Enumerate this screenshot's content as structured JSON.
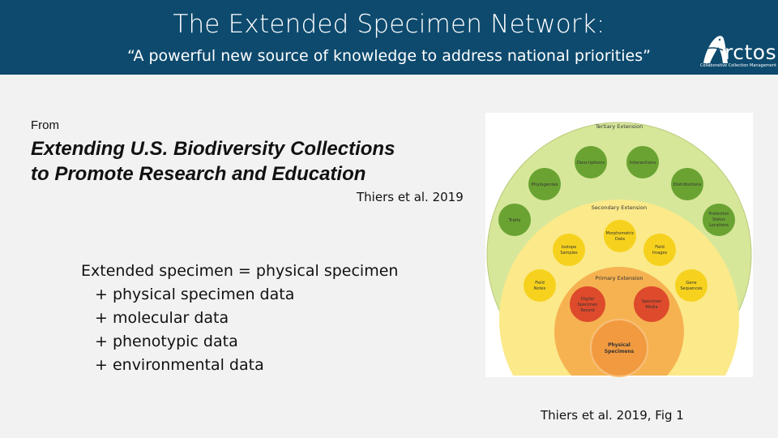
{
  "header": {
    "title": "The Extended Specimen Network:",
    "subtitle": "“A powerful new source of knowledge to address national priorities”",
    "logo": {
      "name": "Arctos",
      "display": "rctos",
      "tagline": "Collaborative Collection Management",
      "icon": "polar-bear-icon"
    },
    "background": "#0d4a6e"
  },
  "content": {
    "from_label": "From",
    "book_title_line1": "Extending U.S. Biodiversity Collections",
    "book_title_line2": "to Promote Research and Education",
    "citation": "Thiers et al. 2019",
    "definition": [
      "Extended specimen = physical specimen",
      "+ physical specimen data",
      "+ molecular data",
      "+ phenotypic data",
      "+ environmental data"
    ],
    "figure_citation": "Thiers et al. 2019, Fig 1"
  },
  "diagram": {
    "tertiary_label": "Tertiary Extension",
    "secondary_label": "Secondary Extension",
    "primary_label": "Primary Extension",
    "tertiary_nodes": [
      "Descriptions",
      "Interactions",
      "Phylogenies",
      "Distributions",
      "Traits",
      "Protection Status Locations"
    ],
    "secondary_nodes": [
      "Morphometric Data",
      "Isotope Samples",
      "Field Images",
      "Field Notes",
      "Gene Sequences"
    ],
    "primary_nodes": [
      "Digital Specimen Record",
      "Specimen Media"
    ],
    "core_node": "Physical Specimens",
    "colors": {
      "tertiary_ring": "#d6e79a",
      "tertiary_node": "#6aa332",
      "secondary_ring": "#fbe98a",
      "secondary_node": "#f6d21e",
      "primary_ring": "#f6b251",
      "primary_node": "#de4a2c",
      "core": "#f29a40"
    }
  }
}
